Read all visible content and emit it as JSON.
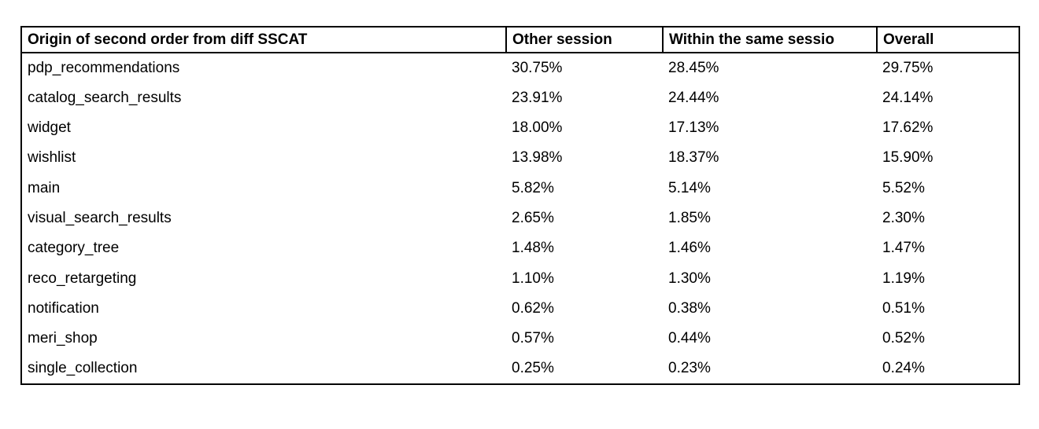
{
  "colors": {
    "background": "#ffffff",
    "text": "#000000",
    "border": "#000000"
  },
  "table": {
    "headers": [
      "Origin of second order from diff SSCAT",
      "Other session",
      "Within the same sessio",
      "Overall"
    ],
    "rows": [
      {
        "origin": "pdp_recommendations",
        "other_session": "30.75%",
        "within_same_session": "28.45%",
        "overall": "29.75%"
      },
      {
        "origin": "catalog_search_results",
        "other_session": "23.91%",
        "within_same_session": "24.44%",
        "overall": "24.14%"
      },
      {
        "origin": "widget",
        "other_session": "18.00%",
        "within_same_session": "17.13%",
        "overall": "17.62%"
      },
      {
        "origin": "wishlist",
        "other_session": "13.98%",
        "within_same_session": "18.37%",
        "overall": "15.90%"
      },
      {
        "origin": "main",
        "other_session": "5.82%",
        "within_same_session": "5.14%",
        "overall": "5.52%"
      },
      {
        "origin": "visual_search_results",
        "other_session": "2.65%",
        "within_same_session": "1.85%",
        "overall": "2.30%"
      },
      {
        "origin": "category_tree",
        "other_session": "1.48%",
        "within_same_session": "1.46%",
        "overall": "1.47%"
      },
      {
        "origin": "reco_retargeting",
        "other_session": "1.10%",
        "within_same_session": "1.30%",
        "overall": "1.19%"
      },
      {
        "origin": "notification",
        "other_session": "0.62%",
        "within_same_session": "0.38%",
        "overall": "0.51%"
      },
      {
        "origin": "meri_shop",
        "other_session": "0.57%",
        "within_same_session": "0.44%",
        "overall": "0.52%"
      },
      {
        "origin": "single_collection",
        "other_session": "0.25%",
        "within_same_session": "0.23%",
        "overall": "0.24%"
      }
    ]
  }
}
